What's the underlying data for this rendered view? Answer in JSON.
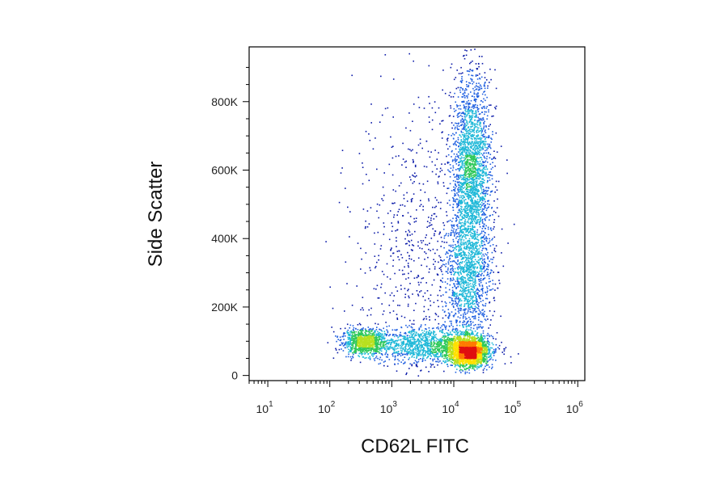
{
  "chart_data": {
    "type": "scatter",
    "subtype": "flow-cytometry-density-dot-plot",
    "xlabel": "CD62L FITC",
    "ylabel": "Side Scatter",
    "x_scale": "log",
    "xlim": [
      5,
      1300000
    ],
    "ylim": [
      -15000,
      960000
    ],
    "x_ticks": [
      {
        "base": "10",
        "exp": "1",
        "value": 10
      },
      {
        "base": "10",
        "exp": "2",
        "value": 100
      },
      {
        "base": "10",
        "exp": "3",
        "value": 1000
      },
      {
        "base": "10",
        "exp": "4",
        "value": 10000
      },
      {
        "base": "10",
        "exp": "5",
        "value": 100000
      },
      {
        "base": "10",
        "exp": "6",
        "value": 1000000
      }
    ],
    "y_ticks": [
      {
        "label": "0",
        "value": 0
      },
      {
        "label": "200K",
        "value": 200000
      },
      {
        "label": "400K",
        "value": 400000
      },
      {
        "label": "600K",
        "value": 600000
      },
      {
        "label": "800K",
        "value": 800000
      }
    ],
    "grid": false,
    "legend": "none",
    "density_colormap": [
      "#0a1aa8",
      "#1f5fe0",
      "#1fb8d8",
      "#2ec85a",
      "#b8e020",
      "#ffe000",
      "#ff7a00",
      "#e01010"
    ],
    "populations": [
      {
        "x": 350,
        "y": 100000,
        "sx_log": 0.18,
        "sy": 18000,
        "count": 900
      },
      {
        "x": 17000,
        "y": 72000,
        "sx_log": 0.16,
        "sy": 22000,
        "count": 2200
      },
      {
        "x": 3500,
        "y": 90000,
        "sx_log": 0.45,
        "sy": 25000,
        "count": 1200
      },
      {
        "x": 19000,
        "y": 580000,
        "sx_log": 0.16,
        "sy": 150000,
        "count": 2400
      },
      {
        "x": 16000,
        "y": 280000,
        "sx_log": 0.2,
        "sy": 90000,
        "count": 1000
      },
      {
        "x": 2500,
        "y": 350000,
        "sx_log": 0.5,
        "sy": 230000,
        "count": 700
      }
    ]
  }
}
